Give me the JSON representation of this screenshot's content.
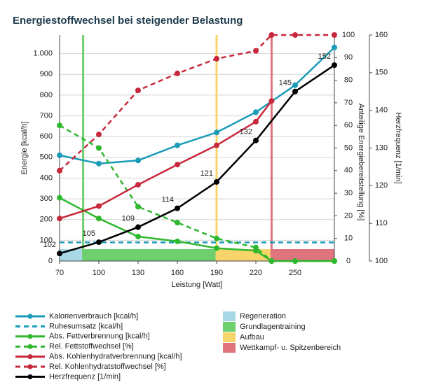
{
  "chart_data": {
    "type": "line",
    "title": "Energiestoffwechsel bei steigender Belastung",
    "xlabel": "Leistung [Watt]",
    "ylabel": "Energie [kcal/h]",
    "y2label": "Anteilige Energiebereitstellung [%]",
    "y3label": "Herzfrequenz [1/min]",
    "xlim": [
      70,
      280
    ],
    "xticks": [
      70,
      100,
      130,
      160,
      190,
      220,
      250
    ],
    "ylim": [
      0,
      1090
    ],
    "yticks": [
      0,
      100,
      200,
      300,
      400,
      500,
      600,
      700,
      800,
      900,
      {
        "value": 1000,
        "label": "1.000"
      }
    ],
    "y2lim": [
      0,
      100
    ],
    "y2ticks": [
      0,
      10,
      20,
      30,
      40,
      50,
      60,
      70,
      80,
      90,
      100
    ],
    "y3lim": [
      100,
      160
    ],
    "y3ticks": [
      100,
      110,
      120,
      130,
      140,
      150,
      160
    ],
    "grid": true,
    "zones": [
      {
        "name": "Regeneration",
        "from": 70,
        "to": 88,
        "color": "#a8d8e6"
      },
      {
        "name": "Grundlagentraining",
        "from": 88,
        "to": 190,
        "color": "#6fcf6f"
      },
      {
        "name": "Aufbau",
        "from": 190,
        "to": 232,
        "color": "#f7d56b"
      },
      {
        "name": "Wettkampf- u. Spitzenbereich",
        "from": 232,
        "to": 280,
        "color": "#e0747e"
      }
    ],
    "series": [
      {
        "name": "Kalorienverbrauch [kcal/h]",
        "color": "#1a9bb8",
        "dashed": false,
        "markers": true,
        "x": [
          70,
          100,
          130,
          160,
          190,
          220,
          250,
          280
        ],
        "values": [
          510,
          470,
          485,
          558,
          620,
          718,
          848,
          1030
        ]
      },
      {
        "name": "Ruhesumsatz [kcal/h]",
        "color": "#1a9bb8",
        "dashed": true,
        "markers": false,
        "x": [
          70,
          280
        ],
        "values": [
          90,
          90
        ]
      },
      {
        "name": "Abs. Fettverbrennung [kcal/h]",
        "color": "#2eb82e",
        "dashed": false,
        "markers": true,
        "x": [
          70,
          100,
          130,
          160,
          190,
          220,
          232,
          250,
          280
        ],
        "values": [
          305,
          205,
          118,
          95,
          62,
          50,
          0,
          0,
          0
        ]
      },
      {
        "name": "Rel. Fettstoffwechsel [%]",
        "color": "#2eb82e",
        "dashed": true,
        "markers": true,
        "axis": "y2",
        "x": [
          70,
          100,
          130,
          160,
          190,
          220,
          232,
          250,
          280
        ],
        "values": [
          60,
          50,
          24,
          17,
          10,
          6,
          0,
          0,
          0
        ]
      },
      {
        "name": "Abs. Kohlenhydratverbrennung [kcal/h]",
        "color": "#c8283c",
        "dashed": false,
        "markers": true,
        "x": [
          70,
          100,
          130,
          160,
          190,
          220,
          232
        ],
        "values": [
          205,
          265,
          368,
          465,
          558,
          672,
          772
        ]
      },
      {
        "name": "Rel. Kohlenhydratstoffwechsel [%]",
        "color": "#c8283c",
        "dashed": true,
        "markers": true,
        "axis": "y2",
        "x": [
          70,
          100,
          130,
          160,
          190,
          220,
          232,
          250,
          280
        ],
        "values": [
          40,
          56,
          75.5,
          83,
          89.5,
          93,
          100,
          100,
          100
        ]
      },
      {
        "name": "Herzfrequenz [1/min]",
        "color": "#000000",
        "dashed": false,
        "markers": true,
        "axis": "y3",
        "labels": true,
        "x": [
          70,
          100,
          130,
          160,
          190,
          220,
          250,
          280
        ],
        "values": [
          102,
          105,
          109,
          114,
          121,
          132,
          145,
          152
        ]
      }
    ]
  }
}
